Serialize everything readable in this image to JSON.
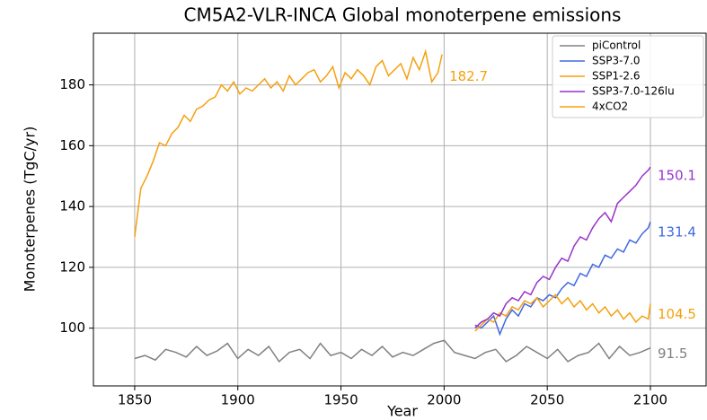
{
  "chart_data": {
    "type": "line",
    "title": "CM5A2-VLR-INCA Global monoterpene emissions",
    "xlabel": "Year",
    "ylabel": "Monoterpenes (TgC/yr)",
    "xlim": [
      1830,
      2127
    ],
    "ylim": [
      81,
      197
    ],
    "xticks": [
      1850,
      1900,
      1950,
      2000,
      2050,
      2100
    ],
    "yticks": [
      100,
      120,
      140,
      160,
      180
    ],
    "grid": true,
    "legend": "upper right",
    "series": [
      {
        "name": "piControl",
        "color": "#808080",
        "end_value": 91.5,
        "x": [
          1850,
          1855,
          1860,
          1865,
          1870,
          1875,
          1880,
          1885,
          1890,
          1895,
          1900,
          1905,
          1910,
          1915,
          1920,
          1925,
          1930,
          1935,
          1940,
          1945,
          1950,
          1955,
          1960,
          1965,
          1970,
          1975,
          1980,
          1985,
          1990,
          1995,
          2000,
          2005,
          2010,
          2015,
          2020,
          2025,
          2030,
          2035,
          2040,
          2045,
          2050,
          2055,
          2060,
          2065,
          2070,
          2075,
          2080,
          2085,
          2090,
          2095,
          2100
        ],
        "values": [
          90,
          91,
          89.5,
          93,
          92,
          90.5,
          94,
          91,
          92.5,
          95,
          90,
          93,
          91,
          94,
          89,
          92,
          93,
          90,
          95,
          91,
          92,
          90,
          93,
          91,
          94,
          90.5,
          92,
          91,
          93,
          95,
          96,
          92,
          91,
          90,
          92,
          93,
          89,
          91,
          94,
          92,
          90,
          93,
          89,
          91,
          92,
          95,
          90,
          94,
          91,
          92,
          93.5
        ]
      },
      {
        "name": "SSP3-7.0",
        "color": "#4169e1",
        "end_value": 131.4,
        "x": [
          2015,
          2018,
          2021,
          2024,
          2027,
          2030,
          2033,
          2036,
          2039,
          2042,
          2045,
          2048,
          2051,
          2054,
          2057,
          2060,
          2063,
          2066,
          2069,
          2072,
          2075,
          2078,
          2081,
          2084,
          2087,
          2090,
          2093,
          2096,
          2099,
          2100
        ],
        "values": [
          101,
          100,
          102,
          104,
          98,
          103,
          106,
          104,
          108,
          107,
          110,
          109,
          111,
          110,
          113,
          115,
          114,
          118,
          117,
          121,
          120,
          124,
          123,
          126,
          125,
          129,
          128,
          131,
          133,
          135
        ]
      },
      {
        "name": "SSP1-2.6",
        "color": "#f5a00f",
        "end_value": 104.5,
        "x": [
          2015,
          2018,
          2021,
          2024,
          2027,
          2030,
          2033,
          2036,
          2039,
          2042,
          2045,
          2048,
          2051,
          2054,
          2057,
          2060,
          2063,
          2066,
          2069,
          2072,
          2075,
          2078,
          2081,
          2084,
          2087,
          2090,
          2093,
          2096,
          2099,
          2100
        ],
        "values": [
          99,
          101,
          103,
          102,
          105,
          104,
          107,
          106,
          109,
          108,
          110,
          107,
          109,
          111,
          108,
          110,
          107,
          109,
          106,
          108,
          105,
          107,
          104,
          106,
          103,
          105,
          102,
          104,
          103,
          108
        ]
      },
      {
        "name": "SSP3-7.0-126lu",
        "color": "#9932cc",
        "end_value": 150.1,
        "x": [
          2015,
          2018,
          2021,
          2024,
          2027,
          2030,
          2033,
          2036,
          2039,
          2042,
          2045,
          2048,
          2051,
          2054,
          2057,
          2060,
          2063,
          2066,
          2069,
          2072,
          2075,
          2078,
          2081,
          2084,
          2087,
          2090,
          2093,
          2096,
          2099,
          2100
        ],
        "values": [
          100,
          102,
          103,
          105,
          104,
          108,
          110,
          109,
          112,
          111,
          115,
          117,
          116,
          120,
          123,
          122,
          127,
          130,
          129,
          133,
          136,
          138,
          135,
          141,
          143,
          145,
          147,
          150,
          152,
          153
        ]
      },
      {
        "name": "4xCO2",
        "color": "#f5a00f",
        "end_value": 182.7,
        "x": [
          1850,
          1853,
          1856,
          1859,
          1862,
          1865,
          1868,
          1871,
          1874,
          1877,
          1880,
          1883,
          1886,
          1889,
          1892,
          1895,
          1898,
          1901,
          1904,
          1907,
          1910,
          1913,
          1916,
          1919,
          1922,
          1925,
          1928,
          1931,
          1934,
          1937,
          1940,
          1943,
          1946,
          1949,
          1952,
          1955,
          1958,
          1961,
          1964,
          1967,
          1970,
          1973,
          1976,
          1979,
          1982,
          1985,
          1988,
          1991,
          1994,
          1997,
          1999
        ],
        "values": [
          130,
          146,
          150,
          155,
          161,
          160,
          164,
          166,
          170,
          168,
          172,
          173,
          175,
          176,
          180,
          178,
          181,
          177,
          179,
          178,
          180,
          182,
          179,
          181,
          178,
          183,
          180,
          182,
          184,
          185,
          181,
          183,
          186,
          179,
          184,
          182,
          185,
          183,
          180,
          186,
          188,
          183,
          185,
          187,
          182,
          189,
          185,
          191,
          181,
          184,
          190
        ]
      }
    ]
  }
}
